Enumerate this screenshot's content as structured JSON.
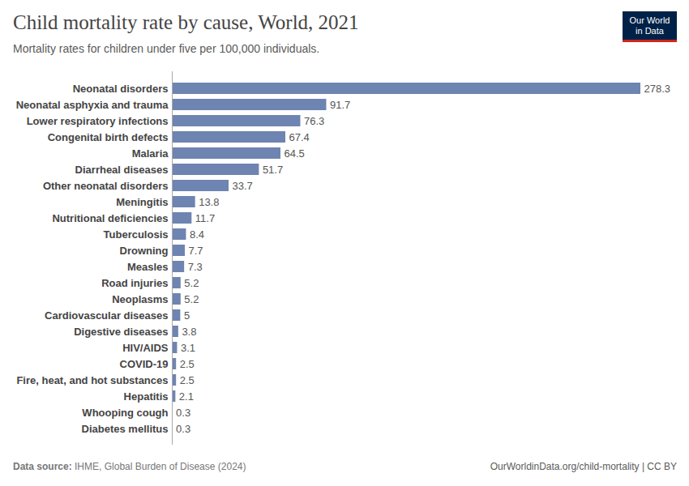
{
  "chart_data": {
    "type": "bar",
    "orientation": "horizontal",
    "title": "Child mortality rate by cause, World, 2021",
    "subtitle": "Mortality rates for children under five per 100,000 individuals.",
    "logo": [
      "Our World",
      "in Data"
    ],
    "source_label": "Data source:",
    "source": "IHME, Global Burden of Disease (2024)",
    "url": "OurWorldinData.org/child-mortality | CC BY",
    "categories": [
      "Neonatal disorders",
      "Neonatal asphyxia and trauma",
      "Lower respiratory infections",
      "Congenital birth defects",
      "Malaria",
      "Diarrheal diseases",
      "Other neonatal disorders",
      "Meningitis",
      "Nutritional deficiencies",
      "Tuberculosis",
      "Drowning",
      "Measles",
      "Road injuries",
      "Neoplasms",
      "Cardiovascular diseases",
      "Digestive diseases",
      "HIV/AIDS",
      "COVID-19",
      "Fire, heat, and hot substances",
      "Hepatitis",
      "Whooping cough",
      "Diabetes mellitus"
    ],
    "values": [
      278.3,
      91.7,
      76.3,
      67.4,
      64.5,
      51.7,
      33.7,
      13.8,
      11.7,
      8.4,
      7.7,
      7.3,
      5.2,
      5.2,
      5,
      3.8,
      3.1,
      2.5,
      2.5,
      2.1,
      0.3,
      0.3
    ],
    "color": "#6e84b1",
    "xlim": [
      0,
      278.3
    ],
    "data_labels": true,
    "tick_labels": "y",
    "grid": false
  }
}
